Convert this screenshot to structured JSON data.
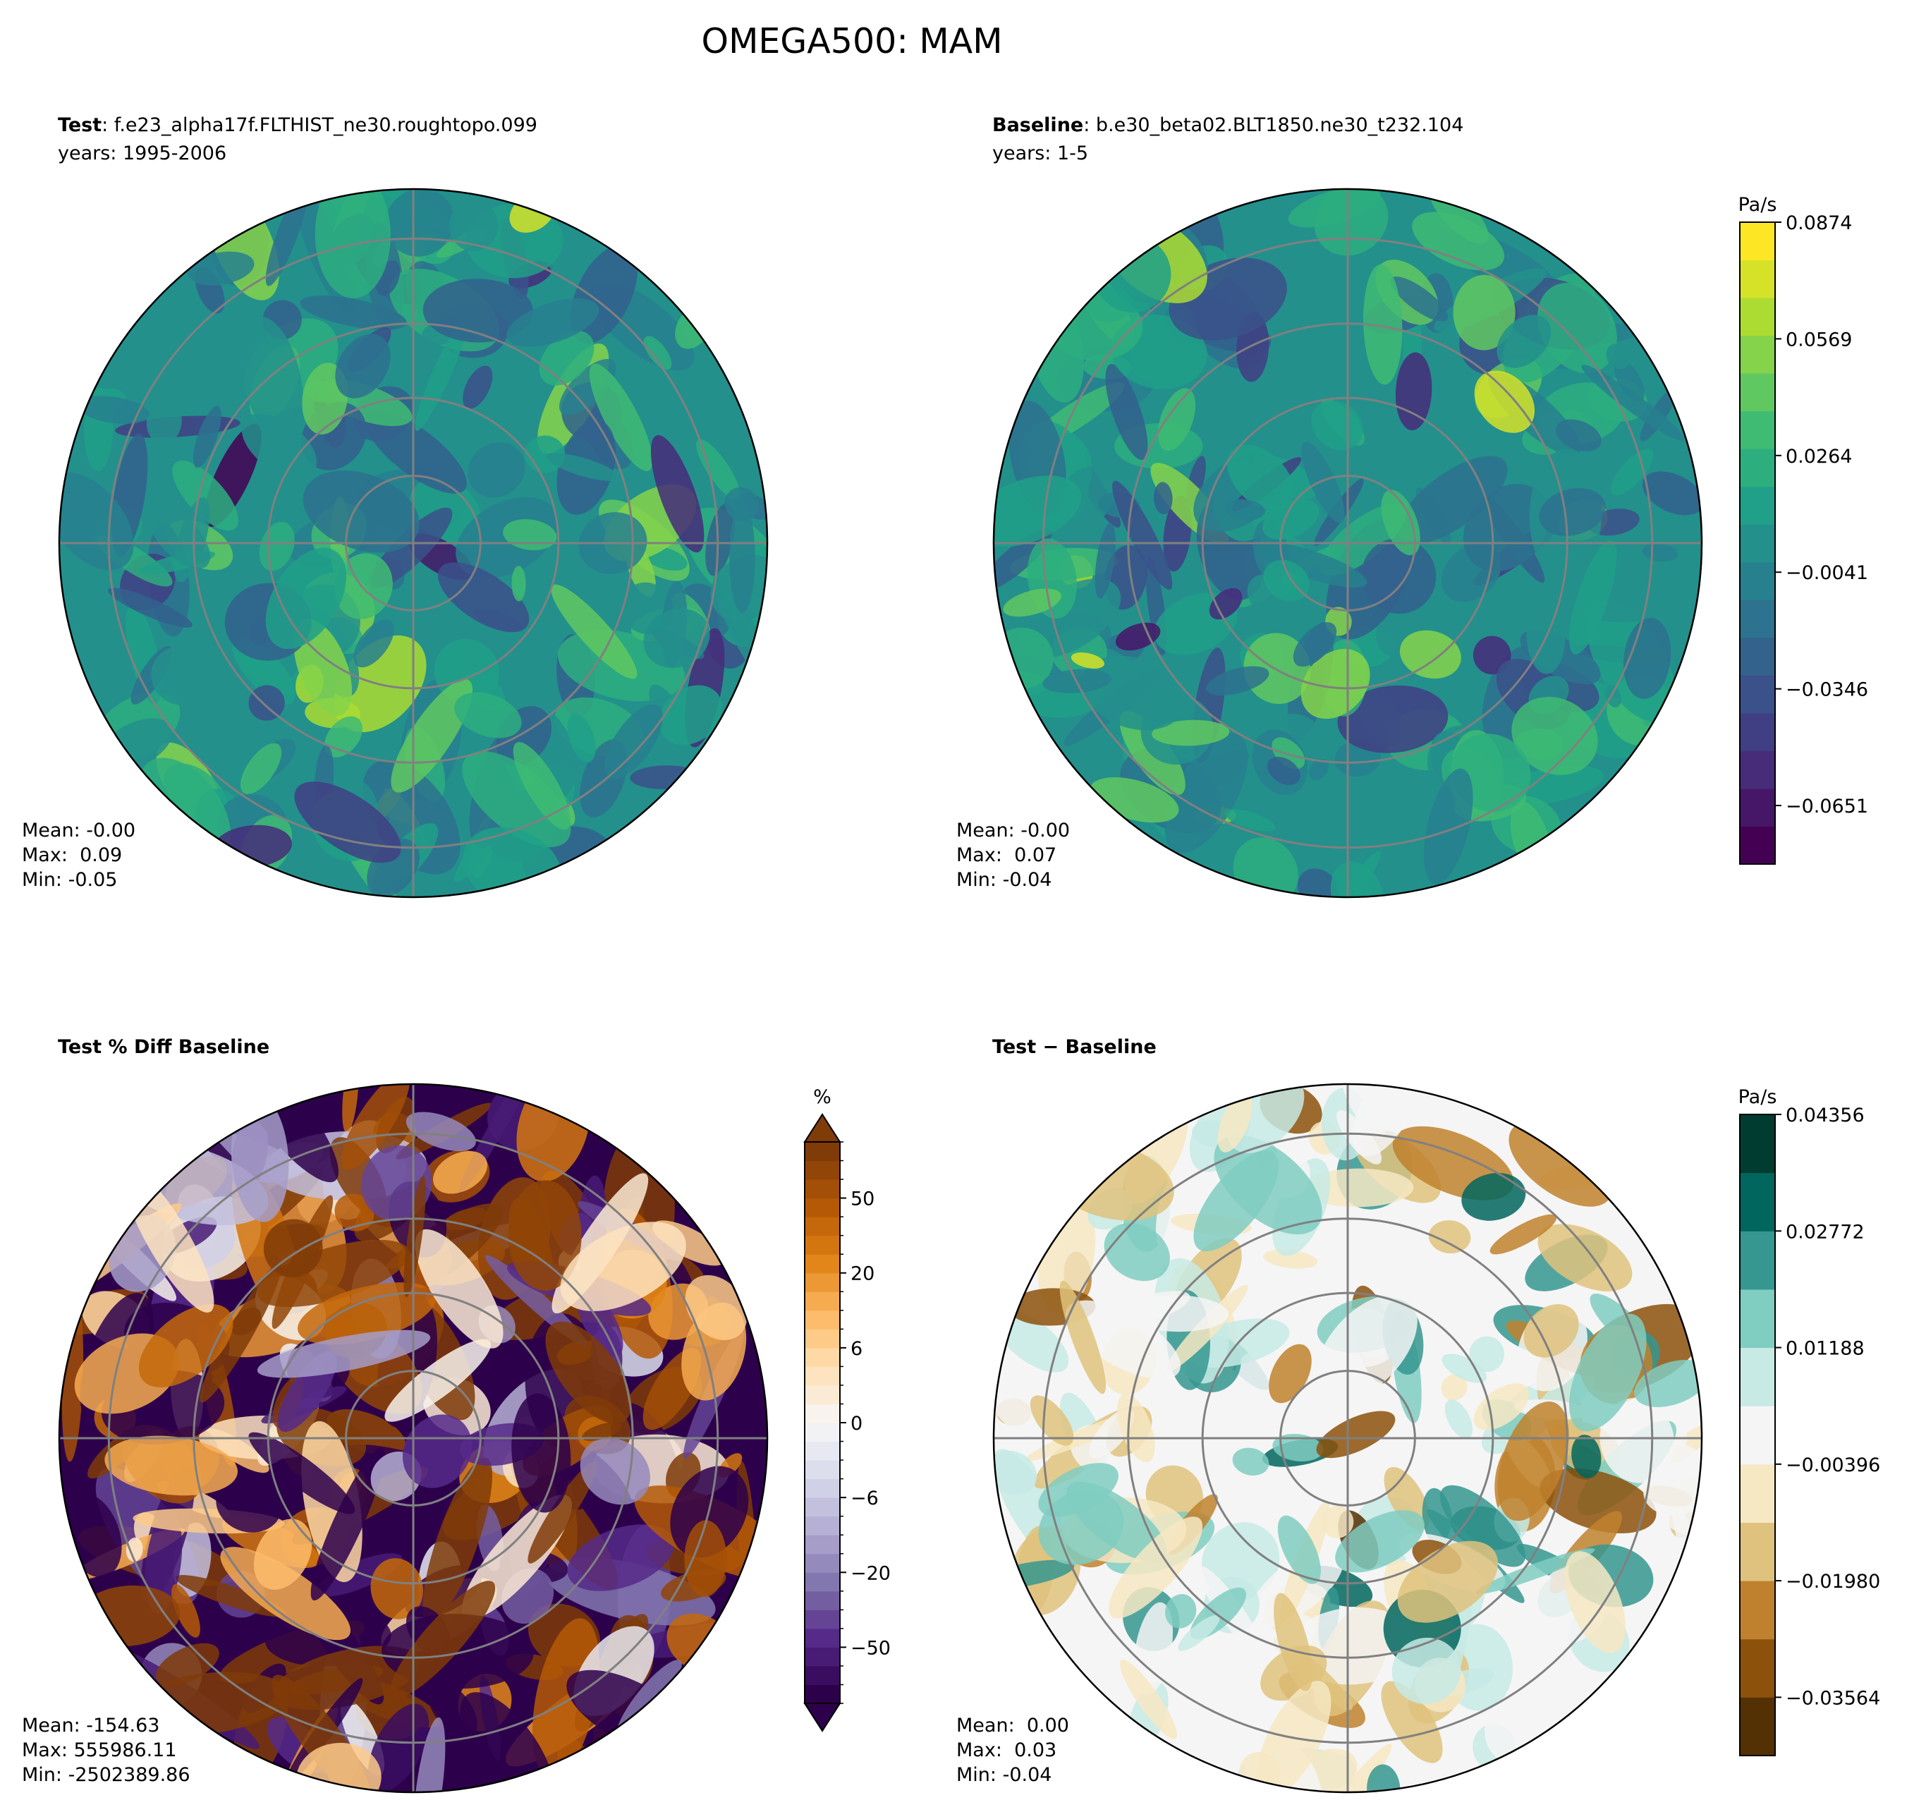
{
  "title": "OMEGA500: MAM",
  "chart_data": [
    {
      "type": "polar-contour",
      "title": "Test",
      "subtitle": ": f.e23_alpha17f.FLTHIST_ne30.roughtopo.099",
      "years": "years: 1995-2006",
      "stats": [
        "Mean: -0.00",
        "Max:  0.09",
        "Min: -0.05"
      ]
    },
    {
      "type": "polar-contour",
      "title": "Baseline",
      "subtitle": ": b.e30_beta02.BLT1850.ne30_t232.104",
      "years": "years: 1-5",
      "stats": [
        "Mean: -0.00",
        "Max:  0.07",
        "Min: -0.04"
      ],
      "colorbar": {
        "label": "Pa/s",
        "lim": [
          -0.0804,
          0.0874
        ],
        "ticks": [
          0.0874,
          0.0569,
          0.0264,
          {
            "value": -0.0041,
            "label": "−0.0041"
          },
          {
            "value": -0.0346,
            "label": "−0.0346"
          },
          {
            "value": -0.0651,
            "label": "−0.0651"
          }
        ],
        "cmap": [
          "#440154",
          "#482878",
          "#3e4989",
          "#31688e",
          "#26828e",
          "#1f9e89",
          "#35b779",
          "#6ece58",
          "#b5de2b",
          "#fde725"
        ],
        "bands": 17
      }
    },
    {
      "type": "polar-contour",
      "title": "Test % Diff Baseline",
      "stats": [
        "Mean: -154.63",
        "Max: 555986.11",
        "Min: -2502389.86"
      ],
      "colorbar": {
        "label": "%",
        "extend": "both",
        "levels": [
          -80,
          -70,
          -60,
          -50,
          -40,
          -30,
          -25,
          -20,
          -15,
          -10,
          -8,
          -6,
          -4,
          -2,
          -1,
          0,
          1,
          2,
          4,
          6,
          8,
          10,
          15,
          20,
          25,
          30,
          40,
          50,
          60,
          70,
          80
        ],
        "ticks": [
          50,
          20,
          6,
          0,
          {
            "value": -6,
            "label": "−6"
          },
          {
            "value": -20,
            "label": "−20"
          },
          {
            "value": -50,
            "label": "−50"
          }
        ],
        "cmap": [
          "#2d004b",
          "#542788",
          "#8073ac",
          "#b2abd2",
          "#d8daeb",
          "#f7f7f7",
          "#fee0b6",
          "#fdb863",
          "#e08214",
          "#b35806",
          "#7f3b08"
        ]
      }
    },
    {
      "type": "polar-contour",
      "title": "Test − Baseline",
      "stats": [
        "Mean:  0.00",
        "Max:  0.03",
        "Min: -0.04"
      ],
      "colorbar": {
        "label": "Pa/s",
        "lim": [
          -0.04356,
          0.04356
        ],
        "ticks": [
          0.04356,
          0.02772,
          0.01188,
          {
            "value": -0.00396,
            "label": "−0.00396"
          },
          {
            "value": -0.0198,
            "label": "−0.01980"
          },
          {
            "value": -0.03564,
            "label": "−0.03564"
          }
        ],
        "cmap": [
          "#543005",
          "#8c510a",
          "#bf812d",
          "#dfc27d",
          "#f6e8c3",
          "#f5f5f5",
          "#c7eae5",
          "#80cdc1",
          "#35978f",
          "#01665e",
          "#003c30"
        ],
        "bands": 11
      }
    }
  ]
}
